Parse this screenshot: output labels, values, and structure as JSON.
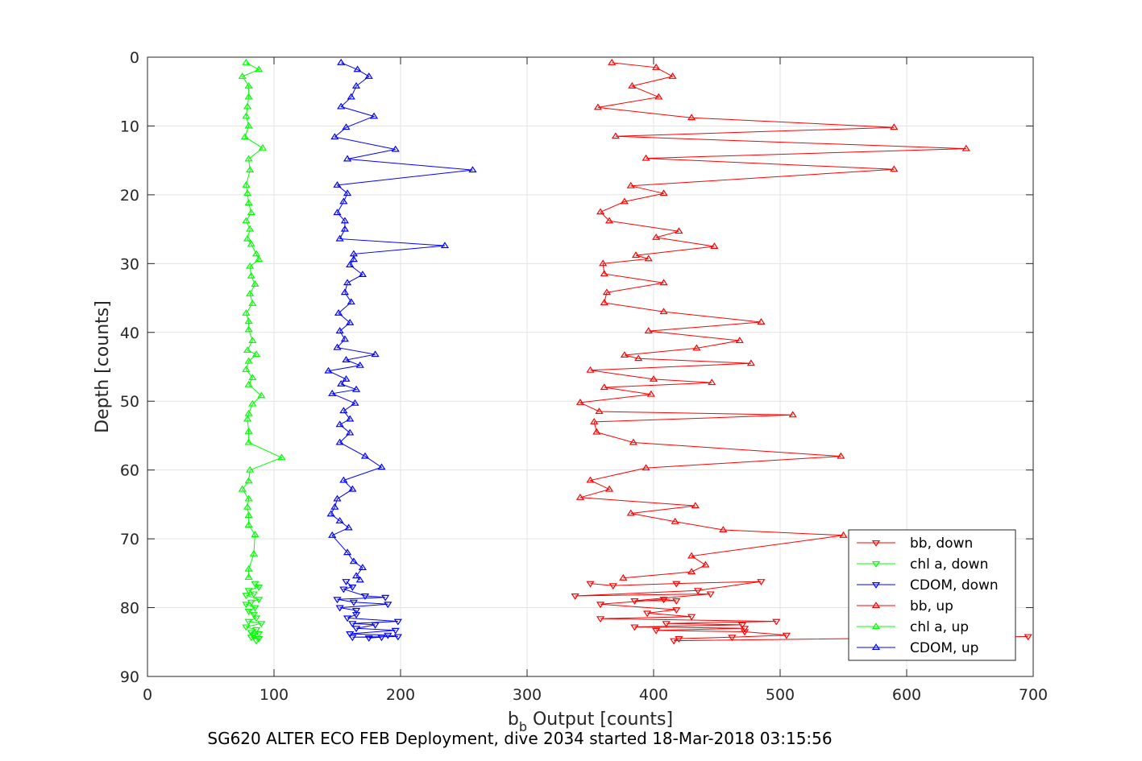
{
  "chart_data": {
    "type": "line",
    "title": "",
    "caption": "SG620 ALTER ECO FEB Deployment, dive 2034 started 18-Mar-2018 03:15:56",
    "xlabel_main": "b",
    "xlabel_sub": "b",
    "xlabel_rest": " Output [counts]",
    "ylabel": "Depth [counts]",
    "xlim": [
      0,
      700
    ],
    "ylim": [
      0,
      90
    ],
    "y_reversed": true,
    "grid": true,
    "legend_position": "bottom-right",
    "xticks": [
      "0",
      "100",
      "200",
      "300",
      "400",
      "500",
      "600",
      "700"
    ],
    "yticks": [
      "0",
      "10",
      "20",
      "30",
      "40",
      "50",
      "60",
      "70",
      "80",
      "90"
    ],
    "series": [
      {
        "name": "bb, down",
        "color": "#ff0000",
        "marker": "triangle-down",
        "points": [
          [
            350,
            76.5
          ],
          [
            368,
            76.8
          ],
          [
            418,
            76.5
          ],
          [
            485,
            76.2
          ],
          [
            435,
            77.5
          ],
          [
            338,
            78.3
          ],
          [
            445,
            78
          ],
          [
            385,
            79
          ],
          [
            418,
            79
          ],
          [
            408,
            78.8
          ],
          [
            358,
            79.5
          ],
          [
            418,
            80.3
          ],
          [
            395,
            80.8
          ],
          [
            430,
            81.3
          ],
          [
            358,
            81.6
          ],
          [
            497,
            82
          ],
          [
            410,
            82.3
          ],
          [
            470,
            82.5
          ],
          [
            385,
            82.8
          ],
          [
            472,
            83
          ],
          [
            402,
            83.3
          ],
          [
            472,
            83.5
          ],
          [
            505,
            84
          ],
          [
            462,
            84.3
          ],
          [
            420,
            84.5
          ],
          [
            416,
            84.8
          ],
          [
            696,
            84.2
          ]
        ]
      },
      {
        "name": "chl a, down",
        "color": "#00ff00",
        "marker": "triangle-down",
        "points": [
          [
            85,
            76.5
          ],
          [
            88,
            77
          ],
          [
            80,
            77.5
          ],
          [
            84,
            78
          ],
          [
            78,
            78.2
          ],
          [
            88,
            78.8
          ],
          [
            82,
            79.2
          ],
          [
            78,
            79.5
          ],
          [
            85,
            80
          ],
          [
            80,
            80.5
          ],
          [
            84,
            81
          ],
          [
            86,
            81.5
          ],
          [
            80,
            82
          ],
          [
            90,
            82.3
          ],
          [
            78,
            82.8
          ],
          [
            86,
            83.2
          ],
          [
            82,
            83.6
          ],
          [
            88,
            83.8
          ],
          [
            84,
            84
          ],
          [
            82,
            84.3
          ],
          [
            88,
            84.5
          ],
          [
            86,
            84.8
          ]
        ]
      },
      {
        "name": "CDOM, down",
        "color": "#0000ff",
        "marker": "triangle-down",
        "points": [
          [
            157,
            76.2
          ],
          [
            162,
            77
          ],
          [
            155,
            77.3
          ],
          [
            172,
            78.3
          ],
          [
            188,
            78.5
          ],
          [
            150,
            78.8
          ],
          [
            163,
            79.2
          ],
          [
            190,
            79.5
          ],
          [
            152,
            80
          ],
          [
            165,
            80.4
          ],
          [
            165,
            81
          ],
          [
            158,
            81.5
          ],
          [
            198,
            82
          ],
          [
            162,
            82.3
          ],
          [
            180,
            82.5
          ],
          [
            165,
            83
          ],
          [
            196,
            83.3
          ],
          [
            160,
            83.8
          ],
          [
            190,
            84
          ],
          [
            198,
            84.2
          ],
          [
            162,
            84.3
          ],
          [
            185,
            84.3
          ],
          [
            175,
            84.4
          ]
        ]
      },
      {
        "name": "bb, up",
        "color": "#ff0000",
        "marker": "triangle-up",
        "points": [
          [
            367,
            0.8
          ],
          [
            402,
            1.5
          ],
          [
            415,
            2.8
          ],
          [
            383,
            4.2
          ],
          [
            404,
            5.8
          ],
          [
            356,
            7.3
          ],
          [
            430,
            8.8
          ],
          [
            590,
            10.2
          ],
          [
            370,
            11.5
          ],
          [
            647,
            13.3
          ],
          [
            394,
            14.7
          ],
          [
            590,
            16.3
          ],
          [
            382,
            18.7
          ],
          [
            408,
            19.8
          ],
          [
            377,
            21
          ],
          [
            358,
            22.5
          ],
          [
            365,
            23.8
          ],
          [
            420,
            25.3
          ],
          [
            402,
            26.2
          ],
          [
            448,
            27.5
          ],
          [
            386,
            28.8
          ],
          [
            396,
            29.3
          ],
          [
            360,
            30
          ],
          [
            361,
            31.5
          ],
          [
            408,
            32.8
          ],
          [
            363,
            34.2
          ],
          [
            361,
            35.7
          ],
          [
            408,
            37
          ],
          [
            485,
            38.5
          ],
          [
            396,
            39.8
          ],
          [
            468,
            41.2
          ],
          [
            434,
            42.3
          ],
          [
            377,
            43.3
          ],
          [
            388,
            43.8
          ],
          [
            477,
            44.5
          ],
          [
            350,
            45.5
          ],
          [
            400,
            46.8
          ],
          [
            446,
            47.3
          ],
          [
            361,
            48
          ],
          [
            398,
            49
          ],
          [
            342,
            50.2
          ],
          [
            357,
            51.5
          ],
          [
            510,
            52
          ],
          [
            353,
            53
          ],
          [
            355,
            54.5
          ],
          [
            384,
            56
          ],
          [
            548,
            58
          ],
          [
            394,
            59.7
          ],
          [
            350,
            61.5
          ],
          [
            365,
            62.8
          ],
          [
            342,
            64
          ],
          [
            433,
            65.2
          ],
          [
            382,
            66.3
          ],
          [
            417,
            67.5
          ],
          [
            455,
            68.7
          ],
          [
            550,
            69.5
          ],
          [
            430,
            72.5
          ],
          [
            441,
            73.8
          ],
          [
            430,
            74.8
          ],
          [
            376,
            75.7
          ]
        ]
      },
      {
        "name": "chl a, up",
        "color": "#00ff00",
        "marker": "triangle-up",
        "points": [
          [
            78,
            0.8
          ],
          [
            88,
            1.8
          ],
          [
            75,
            2.8
          ],
          [
            80,
            4.2
          ],
          [
            80,
            5.8
          ],
          [
            79,
            7.2
          ],
          [
            78,
            8.6
          ],
          [
            80,
            10
          ],
          [
            77,
            11.6
          ],
          [
            91,
            13.2
          ],
          [
            80,
            14.8
          ],
          [
            81,
            16.4
          ],
          [
            78,
            18.6
          ],
          [
            79,
            19.8
          ],
          [
            80,
            21.2
          ],
          [
            82,
            22.6
          ],
          [
            78,
            23.8
          ],
          [
            81,
            25
          ],
          [
            79,
            26.4
          ],
          [
            82,
            27.2
          ],
          [
            86,
            28.6
          ],
          [
            88,
            29.4
          ],
          [
            81,
            30.4
          ],
          [
            82,
            31.8
          ],
          [
            85,
            33
          ],
          [
            81,
            34.4
          ],
          [
            83,
            35.8
          ],
          [
            78,
            37.2
          ],
          [
            80,
            38.4
          ],
          [
            80,
            39.6
          ],
          [
            83,
            41.2
          ],
          [
            79,
            42.6
          ],
          [
            86,
            43.2
          ],
          [
            80,
            44.2
          ],
          [
            78,
            45.4
          ],
          [
            83,
            46.6
          ],
          [
            80,
            47.6
          ],
          [
            90,
            49.2
          ],
          [
            83,
            50.4
          ],
          [
            80,
            51.8
          ],
          [
            79,
            52.6
          ],
          [
            80,
            54.4
          ],
          [
            80,
            56
          ],
          [
            106,
            58.2
          ],
          [
            81,
            60
          ],
          [
            80,
            61.6
          ],
          [
            75,
            62.8
          ],
          [
            80,
            64.2
          ],
          [
            79,
            65.4
          ],
          [
            80,
            66.6
          ],
          [
            80,
            68
          ],
          [
            85,
            69.4
          ],
          [
            84,
            72.2
          ],
          [
            80,
            74.4
          ],
          [
            80,
            75.6
          ]
        ]
      },
      {
        "name": "CDOM, up",
        "color": "#0000ff",
        "marker": "triangle-up",
        "points": [
          [
            153,
            0.8
          ],
          [
            166,
            1.8
          ],
          [
            175,
            2.8
          ],
          [
            165,
            4.2
          ],
          [
            161,
            5.8
          ],
          [
            153,
            7.2
          ],
          [
            179,
            8.6
          ],
          [
            157,
            10.2
          ],
          [
            148,
            11.6
          ],
          [
            196,
            13.4
          ],
          [
            158,
            14.8
          ],
          [
            257,
            16.4
          ],
          [
            150,
            18.6
          ],
          [
            158,
            19.8
          ],
          [
            155,
            21
          ],
          [
            150,
            22.6
          ],
          [
            156,
            23.8
          ],
          [
            156,
            25
          ],
          [
            152,
            26.4
          ],
          [
            235,
            27.4
          ],
          [
            163,
            28.6
          ],
          [
            163,
            29.4
          ],
          [
            160,
            30.2
          ],
          [
            170,
            31.6
          ],
          [
            158,
            32.8
          ],
          [
            156,
            34.2
          ],
          [
            161,
            35.6
          ],
          [
            151,
            37.2
          ],
          [
            160,
            38.6
          ],
          [
            152,
            39.8
          ],
          [
            156,
            41
          ],
          [
            150,
            42.2
          ],
          [
            180,
            43.2
          ],
          [
            157,
            44
          ],
          [
            168,
            44.8
          ],
          [
            143,
            45.6
          ],
          [
            157,
            46.8
          ],
          [
            153,
            47.5
          ],
          [
            165,
            48.3
          ],
          [
            146,
            48.9
          ],
          [
            164,
            50.3
          ],
          [
            155,
            51.4
          ],
          [
            160,
            52.6
          ],
          [
            152,
            53.4
          ],
          [
            160,
            54.6
          ],
          [
            152,
            56
          ],
          [
            172,
            58
          ],
          [
            185,
            59.6
          ],
          [
            155,
            61.5
          ],
          [
            162,
            62.8
          ],
          [
            150,
            64.2
          ],
          [
            148,
            65.4
          ],
          [
            145,
            66.4
          ],
          [
            152,
            67.4
          ],
          [
            159,
            68.4
          ],
          [
            146,
            69.5
          ],
          [
            158,
            72
          ],
          [
            163,
            73.3
          ],
          [
            170,
            74.2
          ],
          [
            165,
            75.4
          ],
          [
            168,
            76
          ]
        ]
      }
    ]
  }
}
